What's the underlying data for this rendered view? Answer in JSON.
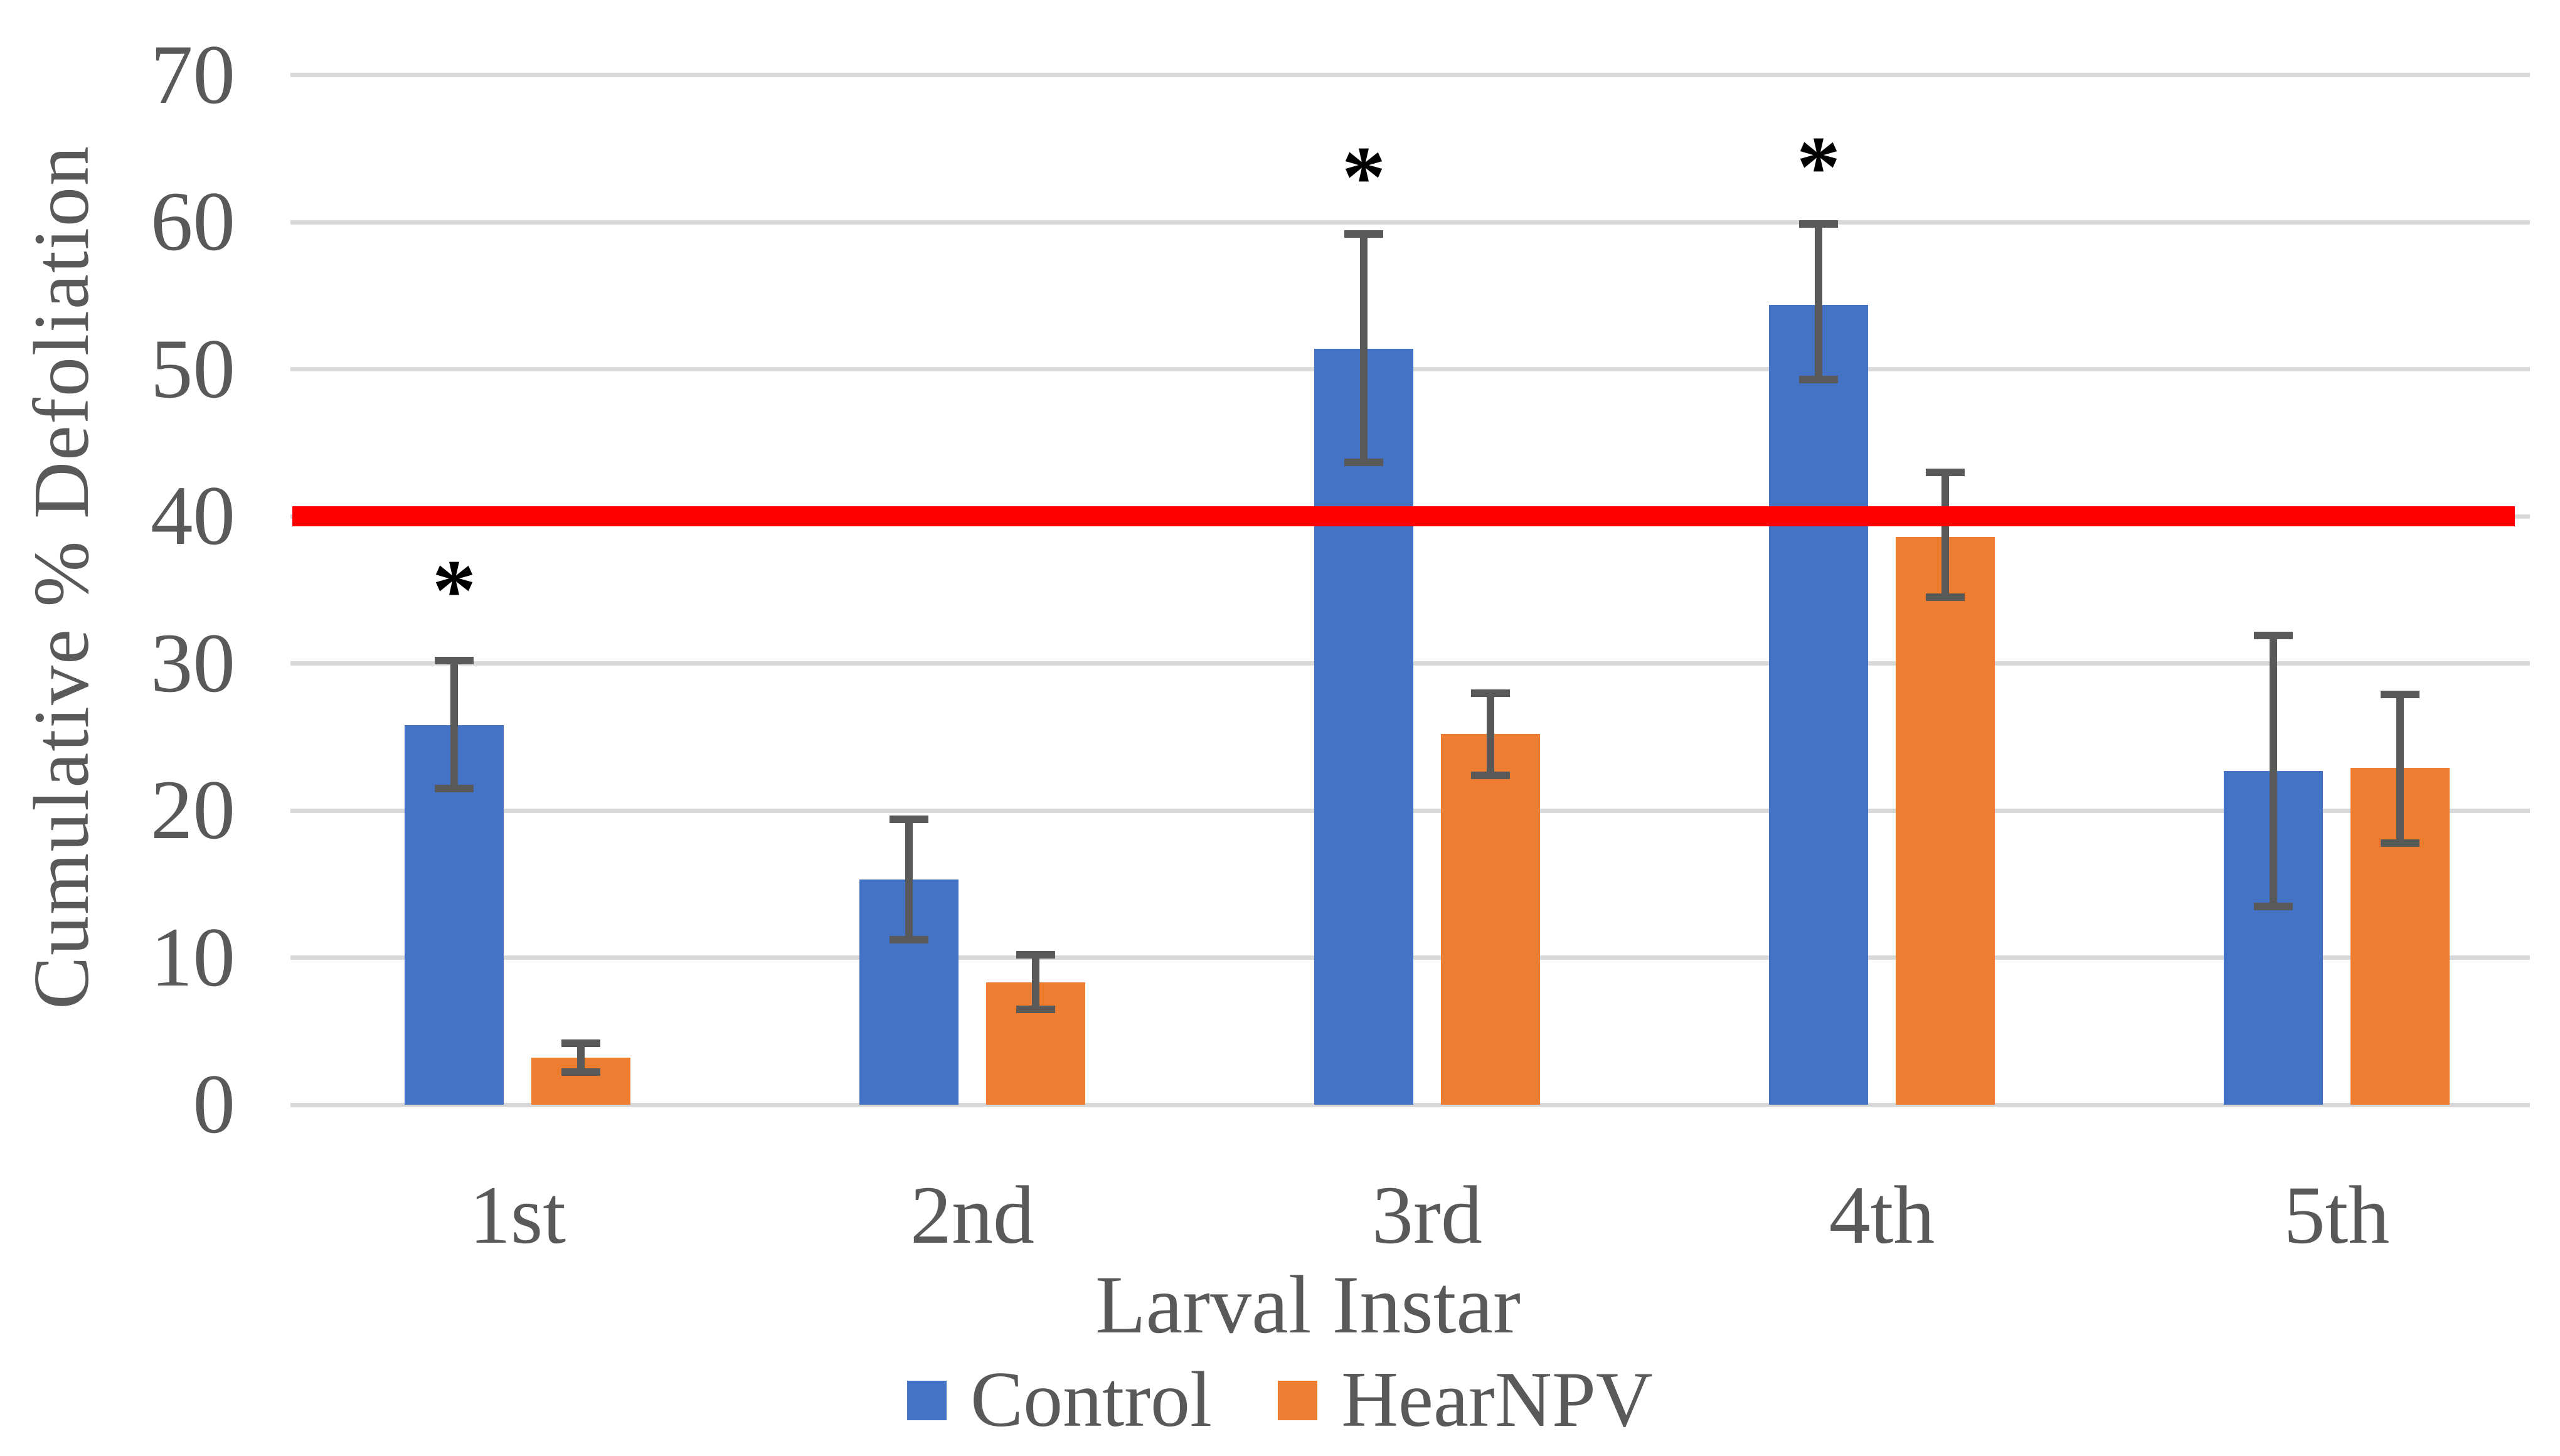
{
  "chart_data": {
    "type": "bar",
    "title": "",
    "xlabel": "Larval Instar",
    "ylabel": "Cumulative % Defoliation",
    "ylim": [
      0,
      70
    ],
    "yticks": [
      0,
      10,
      20,
      30,
      40,
      50,
      60,
      70
    ],
    "grid": true,
    "legend_position": "bottom",
    "categories": [
      "1st",
      "2nd",
      "3rd",
      "4th",
      "5th"
    ],
    "series": [
      {
        "name": "Control",
        "color": "#4472C4",
        "values": [
          25.8,
          15.3,
          51.4,
          54.4,
          22.7
        ],
        "error_up": [
          4.4,
          4.1,
          7.8,
          5.5,
          9.2
        ],
        "error_down": [
          4.3,
          4.1,
          7.7,
          5.1,
          9.2
        ]
      },
      {
        "name": "HearNPV",
        "color": "#ED7D31",
        "values": [
          3.2,
          8.3,
          25.2,
          38.6,
          22.9
        ],
        "error_up": [
          1.0,
          1.9,
          2.8,
          4.4,
          5.0
        ],
        "error_down": [
          1.0,
          1.8,
          2.8,
          4.1,
          5.1
        ]
      }
    ],
    "significance_marks": [
      {
        "category": "1st",
        "group_index": 0,
        "symbol": "*",
        "y": 36.0
      },
      {
        "category": "3rd",
        "group_index": 2,
        "symbol": "*",
        "y": 64.1
      },
      {
        "category": "4th",
        "group_index": 3,
        "symbol": "*",
        "y": 64.8
      }
    ],
    "reference_line": {
      "y": 40,
      "color": "#FF0000"
    }
  },
  "colors": {
    "background": "#FFFFFF",
    "axis_text": "#595959",
    "gridline": "#D9D9D9",
    "error_bar": "#595959",
    "reference_line": "#FF0000",
    "control_blue": "#4472C4",
    "hearnpv_orange": "#ED7D31",
    "asterisk": "#000000"
  }
}
